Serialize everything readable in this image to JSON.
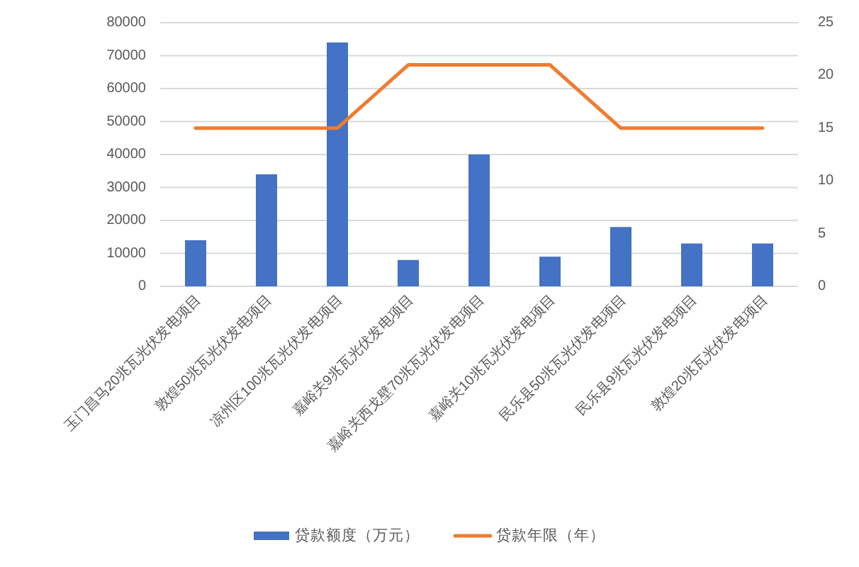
{
  "chart_data": {
    "type": "bar",
    "categories": [
      "玉门昌马20兆瓦光伏发电项目",
      "敦煌50兆瓦光伏发电项目",
      "凉州区100兆瓦光伏发电项目",
      "嘉峪关9兆瓦光伏发电项目",
      "嘉峪关西戈壁70兆瓦光伏发电项目",
      "嘉峪关10兆瓦光伏发电项目",
      "民乐县50兆瓦光伏发电项目",
      "民乐县9兆瓦光伏发电项目",
      "敦煌20兆瓦光伏发电项目"
    ],
    "series": [
      {
        "name": "贷款额度（万元）",
        "color": "#4472c4",
        "values": [
          14000,
          34000,
          74000,
          8000,
          40000,
          9000,
          18000,
          13000,
          13000
        ]
      },
      {
        "name": "贷款年限（年）",
        "type": "line",
        "axis": "y2",
        "color": "#ed7d31",
        "values": [
          15,
          15,
          15,
          21,
          21,
          21,
          15,
          15,
          15
        ]
      }
    ],
    "ylim": [
      0,
      80000
    ],
    "yticks": [
      0,
      10000,
      20000,
      30000,
      40000,
      50000,
      60000,
      70000,
      80000
    ],
    "y2lim": [
      0,
      25
    ],
    "y2ticks": [
      0,
      5,
      10,
      15,
      20,
      25
    ],
    "grid": "y",
    "legend": "bottom",
    "marker": "none",
    "line_style": "solid"
  }
}
